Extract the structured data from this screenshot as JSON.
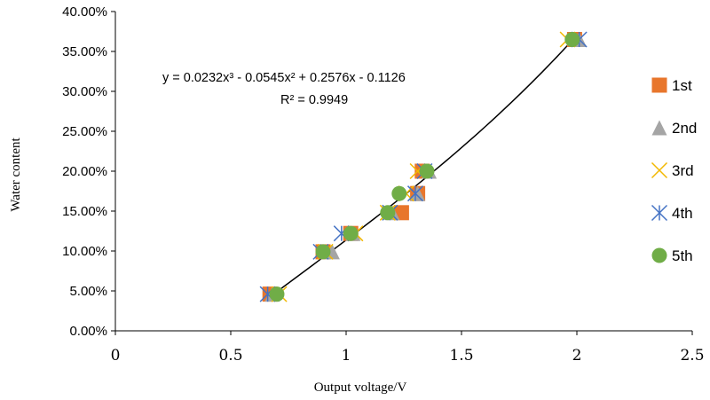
{
  "chart_data": {
    "type": "scatter",
    "xlabel": "Output voltage/V",
    "ylabel": "Water content",
    "xlim": [
      0,
      2.5
    ],
    "ylim": [
      0,
      0.4
    ],
    "x_ticks": [
      0,
      0.5,
      1,
      1.5,
      2,
      2.5
    ],
    "x_tick_labels": [
      "0",
      "0.5",
      "1",
      "1.5",
      "2",
      "2.5"
    ],
    "y_ticks": [
      0,
      0.05,
      0.1,
      0.15,
      0.2,
      0.25,
      0.3,
      0.35,
      0.4
    ],
    "y_tick_labels": [
      "0.00%",
      "5.00%",
      "10.00%",
      "15.00%",
      "20.00%",
      "25.00%",
      "30.00%",
      "35.00%",
      "40.00%"
    ],
    "grid": false,
    "legend_position": "right",
    "series": [
      {
        "name": "1st",
        "marker": "square",
        "color": "#E8762C",
        "x": [
          0.67,
          0.9,
          1.02,
          1.24,
          1.31,
          1.33,
          1.99
        ],
        "y": [
          0.046,
          0.099,
          0.122,
          0.148,
          0.172,
          0.2,
          0.365
        ]
      },
      {
        "name": "2nd",
        "marker": "triangle",
        "color": "#A5A5A5",
        "x": [
          0.68,
          0.94,
          1.03,
          1.2,
          1.31,
          1.36,
          2.01
        ],
        "y": [
          0.046,
          0.099,
          0.122,
          0.148,
          0.172,
          0.2,
          0.365
        ]
      },
      {
        "name": "3rd",
        "marker": "x",
        "color": "#F2B800",
        "x": [
          0.71,
          0.91,
          1.04,
          1.18,
          1.26,
          1.31,
          1.96
        ],
        "y": [
          0.046,
          0.099,
          0.122,
          0.148,
          0.172,
          0.2,
          0.365
        ]
      },
      {
        "name": "4th",
        "marker": "asterisk",
        "color": "#4472C4",
        "x": [
          0.66,
          0.89,
          0.98,
          1.19,
          1.3,
          1.34,
          2.01
        ],
        "y": [
          0.046,
          0.099,
          0.122,
          0.148,
          0.172,
          0.2,
          0.365
        ]
      },
      {
        "name": "5th",
        "marker": "circle",
        "color": "#70AD47",
        "x": [
          0.7,
          0.9,
          1.02,
          1.18,
          1.23,
          1.35,
          1.98
        ],
        "y": [
          0.046,
          0.099,
          0.122,
          0.148,
          0.172,
          0.2,
          0.365
        ]
      }
    ],
    "trendline": {
      "type": "polynomial",
      "coefficients": [
        0.0232,
        -0.0545,
        0.2576,
        -0.1126
      ],
      "x_range": [
        0.68,
        2.0
      ],
      "color": "#000000",
      "equation": "y = 0.0232x³ - 0.0545x² + 0.2576x - 0.1126",
      "r2": "R² = 0.9949"
    }
  }
}
